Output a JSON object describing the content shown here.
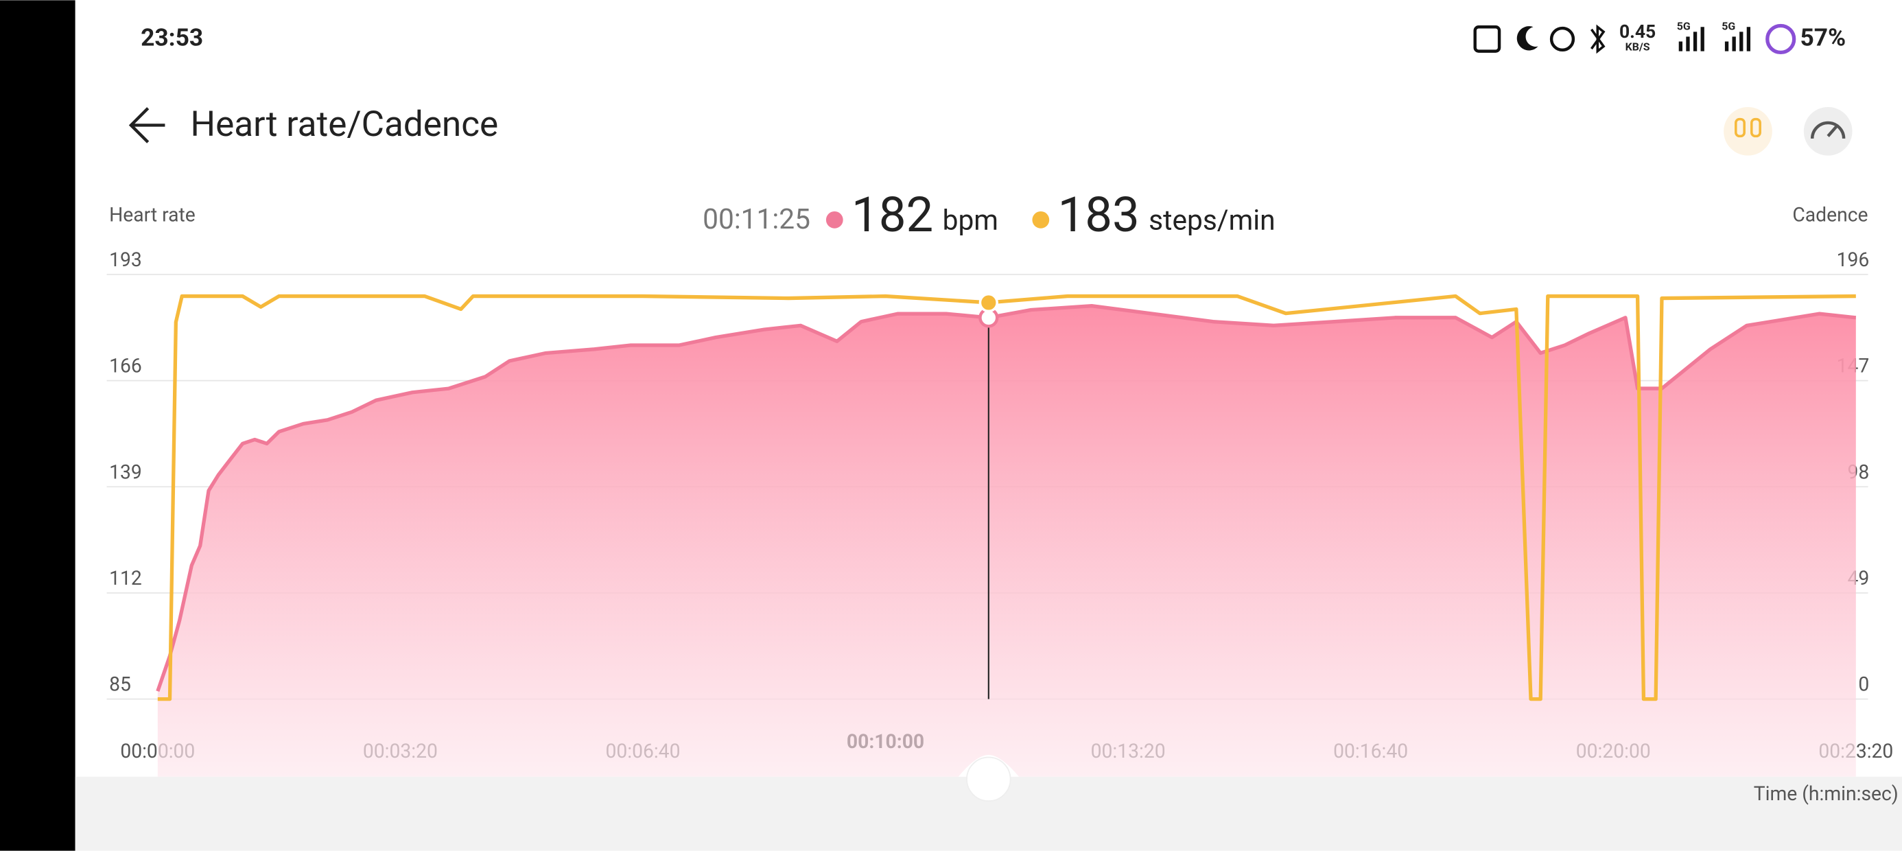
{
  "status_bar": {
    "time": "23:53",
    "net_speed": "0.45",
    "net_unit": "KB/S",
    "net_type_1": "5G",
    "net_type_2": "5G",
    "battery": "57%"
  },
  "header": {
    "title": "Heart rate/Cadence"
  },
  "readout": {
    "time": "00:11:25",
    "heart_rate": 182,
    "heart_rate_unit": "bpm",
    "cadence": 183,
    "cadence_unit": "steps/min"
  },
  "chart_data": {
    "type": "line",
    "y_label": "Heart rate",
    "y2_label": "Cadence",
    "x_label": "Time (h:min:sec)",
    "xlim": [
      0,
      1400
    ],
    "xticks": [
      {
        "value": 0,
        "label": "00:00:00"
      },
      {
        "value": 200,
        "label": "00:03:20"
      },
      {
        "value": 400,
        "label": "00:06:40"
      },
      {
        "value": 600,
        "label": "00:10:00"
      },
      {
        "value": 800,
        "label": "00:13:20"
      },
      {
        "value": 1000,
        "label": "00:16:40"
      },
      {
        "value": 1200,
        "label": "00:20:00"
      },
      {
        "value": 1400,
        "label": "00:23:20"
      }
    ],
    "ylim": [
      85,
      193
    ],
    "yticks": [
      85,
      112,
      139,
      166,
      193
    ],
    "y2lim": [
      0,
      196
    ],
    "y2ticks": [
      0,
      49,
      98,
      147,
      196
    ],
    "grid": true,
    "series": [
      {
        "color": "#f07a98",
        "fill": "area",
        "x": [
          0,
          10,
          18,
          28,
          35,
          42,
          50,
          60,
          70,
          80,
          90,
          100,
          120,
          140,
          160,
          180,
          210,
          240,
          270,
          290,
          320,
          360,
          390,
          430,
          460,
          500,
          530,
          560,
          580,
          610,
          650,
          685,
          720,
          770,
          820,
          870,
          920,
          970,
          1020,
          1070,
          1100,
          1120,
          1140,
          1160,
          1180,
          1210,
          1220,
          1240,
          1260,
          1280,
          1310,
          1350,
          1370,
          1400
        ],
        "values": [
          87,
          96,
          105,
          119,
          124,
          138,
          142,
          146,
          150,
          151,
          150,
          153,
          155,
          156,
          158,
          161,
          163,
          164,
          167,
          171,
          173,
          174,
          175,
          175,
          177,
          179,
          180,
          176,
          181,
          183,
          183,
          182,
          184,
          185,
          183,
          181,
          180,
          181,
          182,
          182,
          177,
          181,
          173,
          175,
          178,
          182,
          164,
          164,
          169,
          174,
          180,
          182,
          183,
          182
        ]
      },
      {
        "color": "#f6b93b",
        "axis": "y2",
        "x": [
          0,
          10,
          15,
          20,
          70,
          85,
          100,
          220,
          250,
          260,
          400,
          520,
          600,
          685,
          750,
          830,
          890,
          930,
          1070,
          1090,
          1120,
          1132,
          1140,
          1146,
          1220,
          1225,
          1235,
          1240,
          1400
        ],
        "values": [
          0,
          0,
          174,
          186,
          186,
          181,
          186,
          186,
          180,
          186,
          186,
          185,
          186,
          183,
          186,
          186,
          186,
          178,
          186,
          178,
          180,
          0,
          0,
          186,
          186,
          0,
          0,
          185,
          186
        ]
      }
    ]
  }
}
